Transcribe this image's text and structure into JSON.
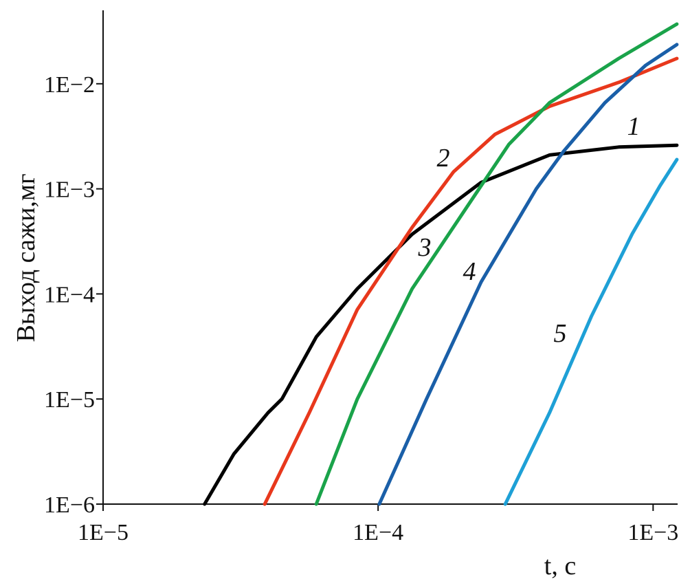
{
  "chart_data": {
    "type": "line",
    "y_label": "Выход сажи,мг",
    "x_label": "t, с",
    "log_x": true,
    "log_y": true,
    "xlim": [
      1e-05,
      0.0012
    ],
    "ylim": [
      1e-06,
      0.05
    ],
    "xticks": [
      {
        "value": 1e-05,
        "label": "1E−5"
      },
      {
        "value": 0.0001,
        "label": "1E−4"
      },
      {
        "value": 0.001,
        "label": "1E−3"
      }
    ],
    "yticks": [
      {
        "value": 1e-06,
        "label": "1E−6"
      },
      {
        "value": 1e-05,
        "label": "1E−5"
      },
      {
        "value": 0.0001,
        "label": "1E−4"
      },
      {
        "value": 0.001,
        "label": "1E−3"
      },
      {
        "value": 0.01,
        "label": "1E−2"
      }
    ],
    "series": [
      {
        "name": "1",
        "color": "#000000",
        "x": [
          2.34e-05,
          2.99e-05,
          3.98e-05,
          4.47e-05,
          5.96e-05,
          8.4e-05,
          0.000133,
          0.000237,
          0.00042,
          0.00075,
          0.00122
        ],
        "values": [
          1e-06,
          3e-06,
          7.4e-06,
          1e-05,
          3.9e-05,
          0.000112,
          0.00037,
          0.00115,
          0.0021,
          0.0025,
          0.0026
        ]
      },
      {
        "name": "2",
        "color": "#e8381c",
        "x": [
          3.87e-05,
          5.62e-05,
          8.4e-05,
          0.000133,
          0.000188,
          0.000266,
          0.00042,
          0.00075,
          0.00122
        ],
        "values": [
          1e-06,
          7.4e-06,
          7.1e-05,
          0.00043,
          0.00145,
          0.0033,
          0.0061,
          0.0103,
          0.0174
        ]
      },
      {
        "name": "3",
        "color": "#1aa34a",
        "x": [
          5.96e-05,
          8.4e-05,
          0.000133,
          0.000211,
          0.000299,
          0.00042,
          0.00075,
          0.00122
        ],
        "values": [
          1e-06,
          1e-05,
          0.000112,
          0.00068,
          0.00265,
          0.0066,
          0.0174,
          0.037
        ]
      },
      {
        "name": "4",
        "color": "#1a5fa8",
        "x": [
          0.000101,
          0.00015,
          0.000237,
          0.000376,
          0.000473,
          0.000668,
          0.00094,
          0.00122
        ],
        "values": [
          1e-06,
          1e-05,
          0.00013,
          0.001,
          0.00228,
          0.0066,
          0.015,
          0.0236
        ]
      },
      {
        "name": "5",
        "color": "#1ea0d6",
        "x": [
          0.00029,
          0.00042,
          0.000596,
          0.00084,
          0.00106,
          0.00122
        ],
        "values": [
          1e-06,
          7.4e-06,
          6.1e-05,
          0.000374,
          0.00107,
          0.0019
        ]
      }
    ]
  }
}
